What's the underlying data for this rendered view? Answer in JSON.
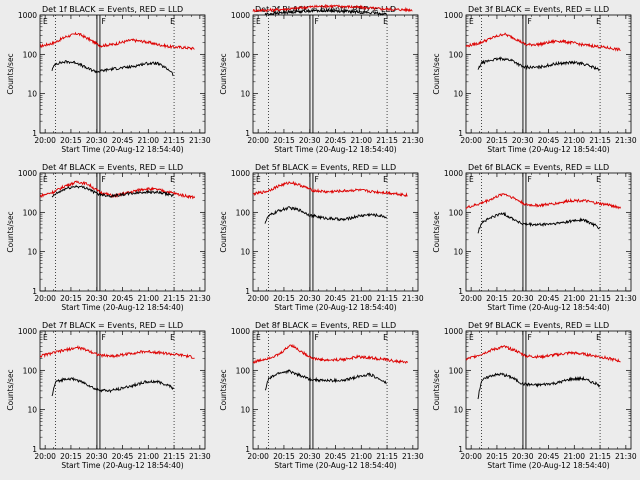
{
  "figure": {
    "background": "#ececec",
    "events_color": "#000000",
    "lld_color": "#dd0000"
  },
  "chart_data": [
    {
      "type": "line",
      "title": "Det 1f BLACK = Events, RED = LLD",
      "xlabel": "Start Time (20-Aug-12 18:54:40)",
      "ylabel": "Counts/sec",
      "yscale": "log",
      "ylim": [
        1,
        1000
      ],
      "yticks": [
        "1",
        "10",
        "100",
        "1000"
      ],
      "xticks": [
        "20:00",
        "20:15",
        "20:30",
        "20:45",
        "21:00",
        "21:15",
        "21:30"
      ],
      "xlim": [
        "19:57",
        "21:33"
      ],
      "markers": [
        "E",
        "F",
        "E"
      ],
      "series": [
        {
          "name": "LLD",
          "color": "#dd0000",
          "x": [
            "19:57",
            "20:05",
            "20:12",
            "20:19",
            "20:25",
            "20:32",
            "20:40",
            "20:50",
            "20:58",
            "21:05",
            "21:13",
            "21:20",
            "21:27"
          ],
          "values": [
            160,
            195,
            280,
            340,
            250,
            165,
            180,
            230,
            210,
            180,
            155,
            150,
            140
          ]
        },
        {
          "name": "Events",
          "color": "#000000",
          "x": [
            "20:04",
            "20:06",
            "20:12",
            "20:18",
            "20:24",
            "20:30",
            "20:38",
            "20:50",
            "20:58",
            "21:05",
            "21:13",
            "21:15"
          ],
          "values": [
            40,
            58,
            65,
            62,
            45,
            36,
            42,
            48,
            58,
            60,
            38,
            28
          ]
        }
      ]
    },
    {
      "type": "line",
      "title": "Det 2f BLACK = Events, RED = LLD",
      "xlabel": "Start Time (20-Aug-12 18:54:40)",
      "ylabel": "Counts/sec",
      "yscale": "log",
      "ylim": [
        1,
        1000
      ],
      "yticks": [
        "1",
        "10",
        "100",
        "1000"
      ],
      "xticks": [
        "20:00",
        "20:15",
        "20:30",
        "20:45",
        "21:00",
        "21:15",
        "21:30"
      ],
      "xlim": [
        "19:57",
        "21:33"
      ],
      "markers": [
        "E",
        "F",
        "E"
      ],
      "series": [
        {
          "name": "LLD",
          "color": "#dd0000",
          "x": [
            "19:57",
            "20:10",
            "20:20",
            "20:30",
            "20:40",
            "20:50",
            "21:00",
            "21:10",
            "21:20",
            "21:30"
          ],
          "values": [
            1300,
            1350,
            1450,
            1600,
            1700,
            1650,
            1550,
            1450,
            1380,
            1350
          ]
        },
        {
          "name": "Events",
          "color": "#000000",
          "x": [
            "20:04",
            "20:10",
            "20:20",
            "20:30",
            "20:40",
            "20:50",
            "21:00",
            "21:10",
            "21:15"
          ],
          "values": [
            1050,
            1100,
            1200,
            1280,
            1300,
            1250,
            1180,
            1100,
            1050
          ]
        }
      ]
    },
    {
      "type": "line",
      "title": "Det 3f BLACK = Events, RED = LLD",
      "xlabel": "Start Time (20-Aug-12 18:54:40)",
      "ylabel": "Counts/sec",
      "yscale": "log",
      "ylim": [
        1,
        1000
      ],
      "yticks": [
        "1",
        "10",
        "100",
        "1000"
      ],
      "xticks": [
        "20:00",
        "20:15",
        "20:30",
        "20:45",
        "21:00",
        "21:15",
        "21:30"
      ],
      "xlim": [
        "19:57",
        "21:33"
      ],
      "markers": [
        "E",
        "F",
        "E"
      ],
      "series": [
        {
          "name": "LLD",
          "color": "#dd0000",
          "x": [
            "19:57",
            "20:05",
            "20:12",
            "20:19",
            "20:25",
            "20:32",
            "20:40",
            "20:50",
            "20:58",
            "21:05",
            "21:13",
            "21:20",
            "21:27"
          ],
          "values": [
            160,
            195,
            260,
            330,
            260,
            175,
            180,
            220,
            200,
            175,
            160,
            145,
            130
          ]
        },
        {
          "name": "Events",
          "color": "#000000",
          "x": [
            "20:04",
            "20:06",
            "20:12",
            "20:18",
            "20:24",
            "20:30",
            "20:38",
            "20:50",
            "20:58",
            "21:05",
            "21:13",
            "21:15"
          ],
          "values": [
            40,
            60,
            72,
            78,
            70,
            48,
            46,
            58,
            62,
            58,
            44,
            38
          ]
        }
      ]
    },
    {
      "type": "line",
      "title": "Det 4f BLACK = Events, RED = LLD",
      "xlabel": "Start Time (20-Aug-12 18:54:40)",
      "ylabel": "Counts/sec",
      "yscale": "log",
      "ylim": [
        1,
        1000
      ],
      "yticks": [
        "1",
        "10",
        "100",
        "1000"
      ],
      "xticks": [
        "20:00",
        "20:15",
        "20:30",
        "20:45",
        "21:00",
        "21:15",
        "21:30"
      ],
      "xlim": [
        "19:57",
        "21:33"
      ],
      "markers": [
        "E",
        "F",
        "E"
      ],
      "series": [
        {
          "name": "LLD",
          "color": "#dd0000",
          "x": [
            "19:57",
            "20:05",
            "20:12",
            "20:19",
            "20:25",
            "20:32",
            "20:40",
            "20:50",
            "20:58",
            "21:05",
            "21:13",
            "21:20",
            "21:27"
          ],
          "values": [
            260,
            330,
            480,
            600,
            520,
            320,
            260,
            330,
            400,
            380,
            320,
            270,
            240
          ]
        },
        {
          "name": "Events",
          "color": "#000000",
          "x": [
            "20:04",
            "20:06",
            "20:12",
            "20:18",
            "20:24",
            "20:30",
            "20:38",
            "20:50",
            "20:58",
            "21:05",
            "21:13",
            "21:15"
          ],
          "values": [
            240,
            290,
            400,
            460,
            420,
            300,
            260,
            300,
            330,
            320,
            280,
            260
          ]
        }
      ]
    },
    {
      "type": "line",
      "title": "Det 5f BLACK = Events, RED = LLD",
      "xlabel": "Start Time (20-Aug-12 18:54:40)",
      "ylabel": "Counts/sec",
      "yscale": "log",
      "ylim": [
        1,
        1000
      ],
      "yticks": [
        "1",
        "10",
        "100",
        "1000"
      ],
      "xticks": [
        "20:00",
        "20:15",
        "20:30",
        "20:45",
        "21:00",
        "21:15",
        "21:30"
      ],
      "xlim": [
        "19:57",
        "21:33"
      ],
      "markers": [
        "E",
        "F",
        "E"
      ],
      "series": [
        {
          "name": "LLD",
          "color": "#dd0000",
          "x": [
            "19:57",
            "20:05",
            "20:12",
            "20:19",
            "20:25",
            "20:32",
            "20:40",
            "20:50",
            "20:58",
            "21:05",
            "21:13",
            "21:20",
            "21:27"
          ],
          "values": [
            290,
            340,
            470,
            580,
            480,
            360,
            330,
            350,
            370,
            340,
            320,
            300,
            270
          ]
        },
        {
          "name": "Events",
          "color": "#000000",
          "x": [
            "20:04",
            "20:06",
            "20:12",
            "20:18",
            "20:24",
            "20:30",
            "20:38",
            "20:50",
            "20:58",
            "21:05",
            "21:13",
            "21:15"
          ],
          "values": [
            55,
            80,
            110,
            130,
            115,
            85,
            72,
            65,
            80,
            88,
            80,
            72
          ]
        }
      ]
    },
    {
      "type": "line",
      "title": "Det 6f BLACK = Events, RED = LLD",
      "xlabel": "Start Time (20-Aug-12 18:54:40)",
      "ylabel": "Counts/sec",
      "yscale": "log",
      "ylim": [
        1,
        1000
      ],
      "yticks": [
        "1",
        "10",
        "100",
        "1000"
      ],
      "xticks": [
        "20:00",
        "20:15",
        "20:30",
        "20:45",
        "21:00",
        "21:15",
        "21:30"
      ],
      "xlim": [
        "19:57",
        "21:33"
      ],
      "markers": [
        "E",
        "F",
        "E"
      ],
      "series": [
        {
          "name": "LLD",
          "color": "#dd0000",
          "x": [
            "19:57",
            "20:05",
            "20:12",
            "20:19",
            "20:25",
            "20:32",
            "20:40",
            "20:50",
            "20:58",
            "21:05",
            "21:13",
            "21:20",
            "21:27"
          ],
          "values": [
            130,
            165,
            220,
            300,
            230,
            155,
            150,
            170,
            200,
            200,
            170,
            155,
            130
          ]
        },
        {
          "name": "Events",
          "color": "#000000",
          "x": [
            "20:04",
            "20:06",
            "20:12",
            "20:18",
            "20:24",
            "20:30",
            "20:38",
            "20:50",
            "20:58",
            "21:05",
            "21:13",
            "21:15"
          ],
          "values": [
            30,
            55,
            75,
            95,
            70,
            50,
            48,
            52,
            60,
            65,
            45,
            38
          ]
        }
      ]
    },
    {
      "type": "line",
      "title": "Det 7f BLACK = Events, RED = LLD",
      "xlabel": "Start Time (20-Aug-12 18:54:40)",
      "ylabel": "Counts/sec",
      "yscale": "log",
      "ylim": [
        1,
        1000
      ],
      "yticks": [
        "1",
        "10",
        "100",
        "1000"
      ],
      "xticks": [
        "20:00",
        "20:15",
        "20:30",
        "20:45",
        "21:00",
        "21:15",
        "21:30"
      ],
      "xlim": [
        "19:57",
        "21:33"
      ],
      "markers": [
        "E",
        "F",
        "E"
      ],
      "series": [
        {
          "name": "LLD",
          "color": "#dd0000",
          "x": [
            "19:57",
            "20:05",
            "20:12",
            "20:19",
            "20:25",
            "20:32",
            "20:40",
            "20:50",
            "20:58",
            "21:05",
            "21:13",
            "21:20",
            "21:27"
          ],
          "values": [
            230,
            280,
            330,
            380,
            320,
            240,
            230,
            270,
            300,
            290,
            260,
            240,
            210
          ]
        },
        {
          "name": "Events",
          "color": "#000000",
          "x": [
            "20:04",
            "20:06",
            "20:12",
            "20:18",
            "20:24",
            "20:30",
            "20:38",
            "20:50",
            "20:58",
            "21:05",
            "21:13",
            "21:15"
          ],
          "values": [
            22,
            50,
            62,
            58,
            45,
            32,
            30,
            40,
            50,
            52,
            40,
            32
          ]
        }
      ]
    },
    {
      "type": "line",
      "title": "Det 8f BLACK = Events, RED = LLD",
      "xlabel": "Start Time (20-Aug-12 18:54:40)",
      "ylabel": "Counts/sec",
      "yscale": "log",
      "ylim": [
        1,
        1000
      ],
      "yticks": [
        "1",
        "10",
        "100",
        "1000"
      ],
      "xticks": [
        "20:00",
        "20:15",
        "20:30",
        "20:45",
        "21:00",
        "21:15",
        "21:30"
      ],
      "xlim": [
        "19:57",
        "21:33"
      ],
      "markers": [
        "E",
        "F",
        "E"
      ],
      "series": [
        {
          "name": "LLD",
          "color": "#dd0000",
          "x": [
            "19:57",
            "20:05",
            "20:12",
            "20:19",
            "20:25",
            "20:32",
            "20:40",
            "20:50",
            "20:58",
            "21:05",
            "21:13",
            "21:20",
            "21:27"
          ],
          "values": [
            160,
            200,
            250,
            450,
            300,
            200,
            180,
            190,
            220,
            210,
            190,
            170,
            160
          ]
        },
        {
          "name": "Events",
          "color": "#000000",
          "x": [
            "20:04",
            "20:06",
            "20:12",
            "20:18",
            "20:24",
            "20:30",
            "20:38",
            "20:50",
            "20:58",
            "21:05",
            "21:13",
            "21:15"
          ],
          "values": [
            30,
            60,
            85,
            95,
            75,
            60,
            55,
            55,
            70,
            80,
            52,
            45
          ]
        }
      ]
    },
    {
      "type": "line",
      "title": "Det 9f BLACK = Events, RED = LLD",
      "xlabel": "Start Time (20-Aug-12 18:54:40)",
      "ylabel": "Counts/sec",
      "yscale": "log",
      "ylim": [
        1,
        1000
      ],
      "yticks": [
        "1",
        "10",
        "100",
        "1000"
      ],
      "xticks": [
        "20:00",
        "20:15",
        "20:30",
        "20:45",
        "21:00",
        "21:15",
        "21:30"
      ],
      "xlim": [
        "19:57",
        "21:33"
      ],
      "markers": [
        "E",
        "F",
        "E"
      ],
      "series": [
        {
          "name": "LLD",
          "color": "#dd0000",
          "x": [
            "19:57",
            "20:05",
            "20:12",
            "20:19",
            "20:25",
            "20:32",
            "20:40",
            "20:50",
            "20:58",
            "21:05",
            "21:13",
            "21:20",
            "21:27"
          ],
          "values": [
            190,
            250,
            330,
            400,
            330,
            230,
            220,
            250,
            280,
            260,
            230,
            200,
            170
          ]
        },
        {
          "name": "Events",
          "color": "#000000",
          "x": [
            "20:04",
            "20:06",
            "20:12",
            "20:18",
            "20:24",
            "20:30",
            "20:38",
            "20:50",
            "20:58",
            "21:05",
            "21:13",
            "21:15"
          ],
          "values": [
            20,
            55,
            75,
            80,
            65,
            45,
            42,
            48,
            60,
            62,
            45,
            38
          ]
        }
      ]
    }
  ]
}
